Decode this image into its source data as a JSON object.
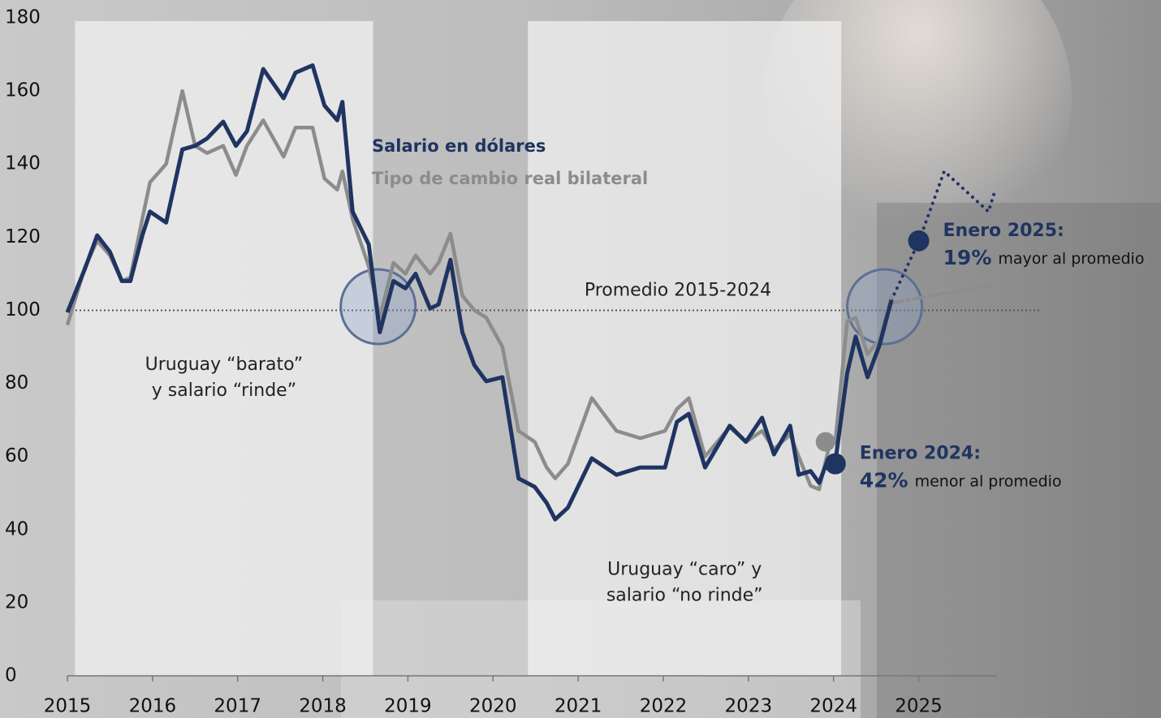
{
  "chart_data": {
    "type": "line",
    "x": [
      2015.0,
      2015.21,
      2015.35,
      2015.5,
      2015.64,
      2015.74,
      2015.88,
      2015.97,
      2016.16,
      2016.35,
      2016.5,
      2016.64,
      2016.83,
      2016.98,
      2017.11,
      2017.3,
      2017.54,
      2017.68,
      2017.88,
      2018.02,
      2018.17,
      2018.23,
      2018.35,
      2018.54,
      2018.67,
      2018.83,
      2018.97,
      2019.09,
      2019.26,
      2019.36,
      2019.5,
      2019.64,
      2019.78,
      2019.92,
      2020.11,
      2020.3,
      2020.49,
      2020.63,
      2020.73,
      2020.88,
      2021.16,
      2021.45,
      2021.73,
      2022.02,
      2022.16,
      2022.3,
      2022.49,
      2022.78,
      2022.97,
      2023.16,
      2023.3,
      2023.49,
      2023.59,
      2023.73,
      2023.83,
      2023.94,
      2024.02,
      2024.16,
      2024.26,
      2024.4,
      2024.54,
      2024.68
    ],
    "series": [
      {
        "name": "Tipo de cambio real bilateral",
        "color": "#8c8c8c",
        "values": [
          96,
          112,
          119,
          115,
          108,
          109,
          125,
          135,
          140,
          160,
          145,
          143,
          145,
          137,
          145,
          152,
          142,
          150,
          150,
          136,
          133,
          138,
          125,
          112,
          98,
          113,
          110,
          115,
          110,
          113,
          121,
          104,
          100,
          98,
          90,
          67,
          64,
          57,
          54,
          58,
          76,
          67,
          65,
          67,
          73,
          76,
          60,
          68,
          64,
          67,
          62,
          66,
          60,
          52,
          51,
          62,
          64,
          97,
          98,
          88,
          92,
          104
        ]
      },
      {
        "name": "Salario en dólares",
        "color": "#1f3461",
        "values": [
          99.4,
          111.6,
          120.5,
          116,
          108,
          108,
          120.5,
          127,
          124,
          144,
          145,
          147,
          151.6,
          145,
          149,
          166,
          158,
          165,
          167,
          156,
          152,
          157,
          127,
          118,
          94,
          108,
          106,
          110,
          100.5,
          101.6,
          113.8,
          94,
          85,
          80.6,
          81.7,
          54,
          51.7,
          47.3,
          42.8,
          46,
          59.5,
          55,
          57,
          57,
          69.5,
          71.7,
          57,
          68.4,
          64,
          70.6,
          60.6,
          68.4,
          55,
          56,
          52.8,
          59.5,
          58.4,
          82.8,
          92.8,
          81.7,
          90.5,
          102.8
        ]
      }
    ],
    "projections": [
      {
        "color": "#1f3461",
        "style": "dotted",
        "x": [
          2024.68,
          2025.0,
          2025.3,
          2025.82,
          2025.9
        ],
        "values": [
          102.8,
          118.7,
          138,
          127,
          133
        ]
      },
      {
        "color": "#8c8c8c",
        "style": "dashdot",
        "x": [
          2024.68,
          2025.87
        ],
        "values": [
          102,
          107
        ]
      }
    ],
    "reference_line": {
      "value": 100,
      "label": "Promedio 2015-2024"
    },
    "spans": [
      {
        "x": [
          2015.09,
          2018.59
        ],
        "lines": [
          "Uruguay “barato”",
          "y salario “rinde”"
        ],
        "label_value": 85
      },
      {
        "x": [
          2020.41,
          2024.09
        ],
        "lines": [
          "Uruguay “caro” y",
          "salario “no rinde”"
        ],
        "label_value": 29
      }
    ],
    "highlights": [
      {
        "x": 2018.65,
        "value": 101
      },
      {
        "x": 2024.6,
        "value": 101
      }
    ],
    "callouts": [
      {
        "x": 2025.0,
        "value": 119,
        "title": "Enero 2025:",
        "pct": "19%",
        "rest": "mayor al promedio"
      },
      {
        "x": 2024.02,
        "value": 58,
        "gray_value": 64,
        "title": "Enero 2024:",
        "pct": "42%",
        "rest": "menor al promedio"
      }
    ],
    "xlim": [
      2015,
      2025.92
    ],
    "xticks": [
      2015,
      2016,
      2017,
      2018,
      2019,
      2020,
      2021,
      2022,
      2023,
      2024,
      2025
    ],
    "ylim": [
      0,
      180
    ],
    "yticks": [
      0,
      20,
      40,
      60,
      80,
      100,
      120,
      140,
      160,
      180
    ]
  }
}
